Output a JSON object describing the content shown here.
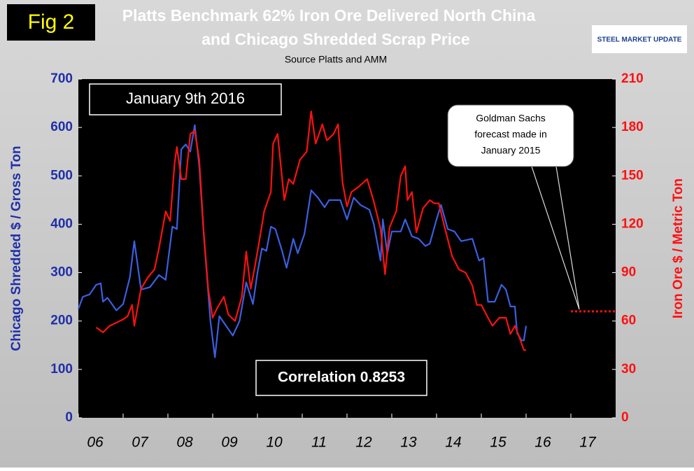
{
  "chart_data": {
    "type": "line",
    "figure_label": "Fig 2",
    "title": [
      "Platts Benchmark 62% Iron Ore Delivered North China",
      "and Chicago Shredded Scrap Price"
    ],
    "subtitle": "Source Platts and AMM",
    "logo": "STEEL MARKET UPDATE",
    "ylabel": "Chicago Shredded $ / Gross Ton",
    "y2label": "Iron Ore $ / Metric Ton",
    "annotations": {
      "date": "January 9th 2016",
      "correlation": "Correlation 0.8253",
      "forecast": [
        "Goldman Sachs",
        "forecast made in",
        "January 2015"
      ]
    },
    "xlim": [
      2006,
      2018
    ],
    "xticks": [
      {
        "value": 2006,
        "label": "06"
      },
      {
        "value": 2007,
        "label": "07"
      },
      {
        "value": 2008,
        "label": "08"
      },
      {
        "value": 2009,
        "label": "09"
      },
      {
        "value": 2010,
        "label": "10"
      },
      {
        "value": 2011,
        "label": "11"
      },
      {
        "value": 2012,
        "label": "12"
      },
      {
        "value": 2013,
        "label": "13"
      },
      {
        "value": 2014,
        "label": "14"
      },
      {
        "value": 2015,
        "label": "15"
      },
      {
        "value": 2016,
        "label": "16"
      },
      {
        "value": 2017,
        "label": "17"
      }
    ],
    "ylim": [
      0,
      700
    ],
    "yticks": [
      0,
      100,
      200,
      300,
      400,
      500,
      600,
      700
    ],
    "y2lim": [
      0,
      210
    ],
    "y2ticks": [
      0,
      30,
      60,
      90,
      120,
      150,
      180,
      210
    ],
    "series": [
      {
        "color": "#3a5fe0",
        "axis": "y",
        "x": [
          2006.0,
          2006.1,
          2006.25,
          2006.4,
          2006.5,
          2006.55,
          2006.65,
          2006.85,
          2007.0,
          2007.15,
          2007.25,
          2007.4,
          2007.6,
          2007.8,
          2007.95,
          2008.1,
          2008.2,
          2008.3,
          2008.4,
          2008.5,
          2008.6,
          2008.7,
          2008.8,
          2008.95,
          2009.05,
          2009.15,
          2009.3,
          2009.45,
          2009.6,
          2009.75,
          2009.9,
          2010.0,
          2010.1,
          2010.2,
          2010.3,
          2010.4,
          2010.55,
          2010.65,
          2010.8,
          2010.9,
          2011.05,
          2011.2,
          2011.35,
          2011.5,
          2011.6,
          2011.85,
          2012.0,
          2012.15,
          2012.3,
          2012.5,
          2012.6,
          2012.75,
          2012.8,
          2012.9,
          2013.0,
          2013.2,
          2013.3,
          2013.45,
          2013.6,
          2013.75,
          2013.85,
          2014.0,
          2014.1,
          2014.25,
          2014.4,
          2014.55,
          2014.8,
          2014.95,
          2015.05,
          2015.15,
          2015.3,
          2015.45,
          2015.55,
          2015.65,
          2015.75,
          2015.8,
          2015.9,
          2015.95,
          2016.0
        ],
        "values": [
          225,
          250,
          255,
          275,
          278,
          240,
          248,
          222,
          235,
          290,
          365,
          265,
          270,
          295,
          285,
          395,
          390,
          555,
          565,
          550,
          605,
          520,
          380,
          200,
          125,
          210,
          190,
          170,
          200,
          280,
          235,
          300,
          350,
          345,
          395,
          390,
          345,
          310,
          370,
          340,
          380,
          470,
          455,
          435,
          450,
          450,
          410,
          455,
          440,
          430,
          400,
          325,
          410,
          340,
          385,
          385,
          410,
          375,
          370,
          355,
          360,
          410,
          440,
          390,
          385,
          365,
          370,
          325,
          330,
          240,
          240,
          275,
          265,
          230,
          230,
          175,
          160,
          160,
          190
        ]
      },
      {
        "color": "#ff1010",
        "axis": "y2",
        "x": [
          2006.4,
          2006.55,
          2006.7,
          2006.85,
          2007.0,
          2007.1,
          2007.2,
          2007.25,
          2007.4,
          2007.55,
          2007.7,
          2007.8,
          2007.95,
          2008.05,
          2008.15,
          2008.2,
          2008.3,
          2008.4,
          2008.5,
          2008.6,
          2008.7,
          2008.8,
          2008.9,
          2009.0,
          2009.1,
          2009.25,
          2009.35,
          2009.5,
          2009.65,
          2009.75,
          2009.85,
          2009.95,
          2010.05,
          2010.15,
          2010.3,
          2010.35,
          2010.45,
          2010.6,
          2010.7,
          2010.8,
          2010.95,
          2011.1,
          2011.2,
          2011.3,
          2011.45,
          2011.55,
          2011.7,
          2011.8,
          2011.9,
          2012.0,
          2012.1,
          2012.25,
          2012.45,
          2012.6,
          2012.75,
          2012.85,
          2012.95,
          2013.1,
          2013.2,
          2013.3,
          2013.35,
          2013.45,
          2013.55,
          2013.7,
          2013.85,
          2013.95,
          2014.05,
          2014.2,
          2014.35,
          2014.5,
          2014.65,
          2014.8,
          2014.9,
          2015.0,
          2015.15,
          2015.25,
          2015.4,
          2015.55,
          2015.65,
          2015.75,
          2015.85,
          2015.95,
          2016.0
        ],
        "values": [
          56,
          53,
          57,
          59,
          61,
          63,
          70,
          57,
          80,
          87,
          92,
          105,
          128,
          122,
          158,
          168,
          148,
          148,
          176,
          178,
          160,
          115,
          80,
          62,
          68,
          75,
          64,
          60,
          75,
          103,
          80,
          95,
          111,
          128,
          140,
          170,
          176,
          135,
          148,
          145,
          160,
          165,
          190,
          170,
          182,
          172,
          176,
          182,
          146,
          131,
          140,
          143,
          148,
          134,
          117,
          89,
          118,
          128,
          150,
          156,
          135,
          140,
          115,
          130,
          135,
          133,
          133,
          116,
          100,
          92,
          90,
          82,
          70,
          70,
          62,
          57,
          62,
          62,
          52,
          57,
          50,
          42,
          42
        ]
      },
      {
        "color": "#ff1010",
        "axis": "y2",
        "dashed": true,
        "x": [
          2017,
          2018
        ],
        "values": [
          66,
          66
        ]
      }
    ]
  }
}
